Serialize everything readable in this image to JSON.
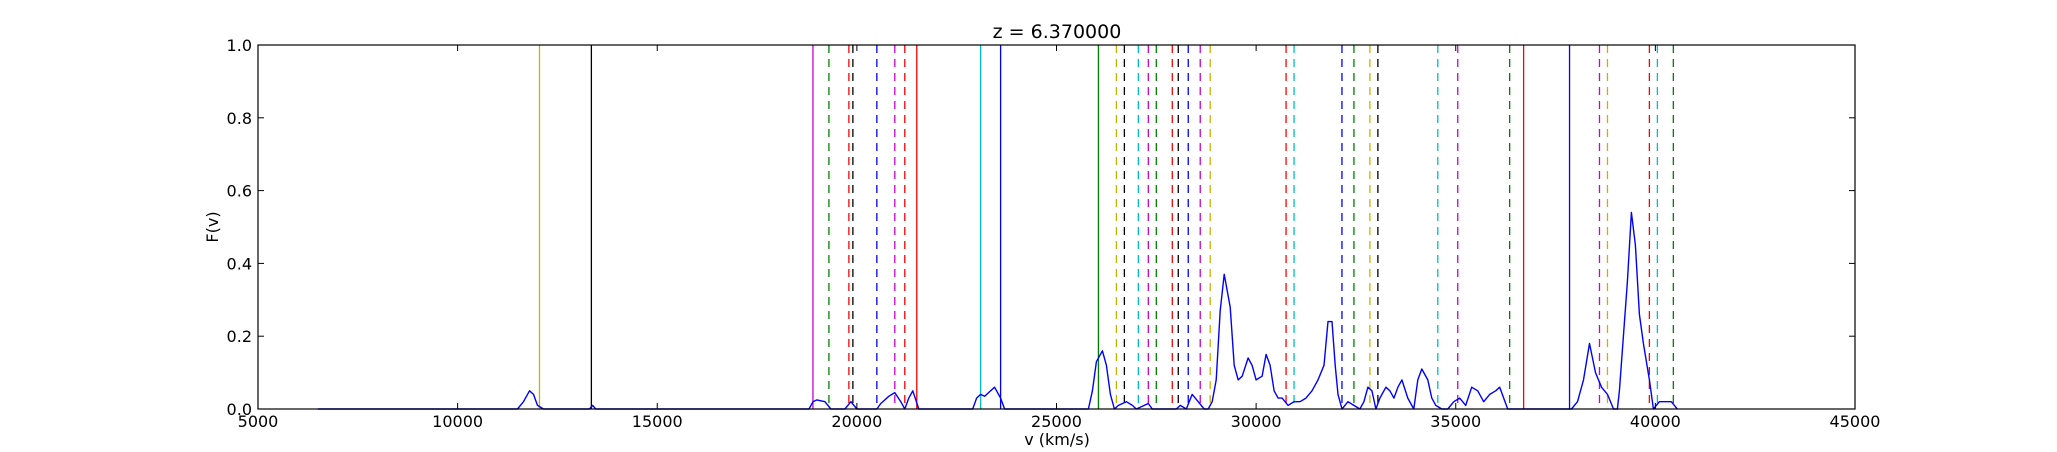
{
  "chart_data": {
    "type": "line",
    "title": "z = 6.370000",
    "xlabel": "v (km/s)",
    "ylabel": "F(v)",
    "xlim": [
      5000,
      45000
    ],
    "ylim": [
      0.0,
      1.0
    ],
    "grid": false,
    "x_ticks": [
      5000,
      10000,
      15000,
      20000,
      25000,
      30000,
      35000,
      40000,
      45000
    ],
    "x_tick_labels": [
      "5000",
      "10000",
      "15000",
      "20000",
      "25000",
      "30000",
      "35000",
      "40000",
      "45000"
    ],
    "y_ticks": [
      0.0,
      0.2,
      0.4,
      0.6,
      0.8,
      1.0
    ],
    "y_tick_labels": [
      "0.0",
      "0.2",
      "0.4",
      "0.6",
      "0.8",
      "1.0"
    ],
    "series": [
      {
        "color": "#0000ff",
        "x": [
          6500,
          11500,
          11650,
          11800,
          11900,
          12000,
          12150,
          12300,
          13300,
          13380,
          13460,
          18800,
          18900,
          19000,
          19200,
          19350,
          19700,
          19850,
          20000,
          20200,
          20500,
          20600,
          20800,
          20950,
          21100,
          21200,
          21300,
          21400,
          21550,
          22900,
          23000,
          23100,
          23200,
          23300,
          23450,
          23600,
          23700,
          25800,
          25900,
          26000,
          26150,
          26250,
          26350,
          26450,
          26550,
          26750,
          26900,
          27000,
          27300,
          27400,
          27500,
          28000,
          28100,
          28250,
          28400,
          28550,
          28700,
          28800,
          28900,
          29000,
          29100,
          29200,
          29350,
          29450,
          29550,
          29650,
          29800,
          29900,
          30000,
          30150,
          30250,
          30350,
          30450,
          30550,
          30650,
          30800,
          30950,
          31100,
          31250,
          31400,
          31550,
          31700,
          31800,
          31900,
          31980,
          32050,
          32150,
          32300,
          32450,
          32600,
          32700,
          32800,
          32900,
          33000,
          33100,
          33250,
          33350,
          33450,
          33550,
          33650,
          33800,
          33950,
          34050,
          34150,
          34300,
          34400,
          34500,
          34650,
          34800,
          34950,
          35100,
          35250,
          35400,
          35550,
          35700,
          35850,
          36000,
          36100,
          36200,
          36300,
          36400,
          36550,
          37600,
          37750,
          37900,
          38050,
          38200,
          38350,
          38500,
          38650,
          38800,
          38950,
          39050,
          39100,
          39200,
          39300,
          39400,
          39500,
          39600,
          39700,
          39850,
          39950,
          40100,
          40250,
          40400,
          40550
        ],
        "y": [
          0.0,
          0.0,
          0.02,
          0.05,
          0.04,
          0.01,
          0.0,
          0.0,
          0.0,
          0.01,
          0.0,
          0.0,
          0.02,
          0.025,
          0.02,
          0.0,
          0.0,
          0.02,
          0.0,
          0.0,
          0.0,
          0.015,
          0.035,
          0.045,
          0.02,
          0.0,
          0.03,
          0.05,
          0.0,
          0.0,
          0.03,
          0.04,
          0.035,
          0.045,
          0.06,
          0.03,
          0.0,
          0.0,
          0.05,
          0.13,
          0.16,
          0.12,
          0.04,
          0.0,
          0.01,
          0.02,
          0.01,
          0.0,
          0.015,
          0.0,
          0.0,
          0.0,
          0.01,
          0.0,
          0.04,
          0.02,
          0.0,
          0.0,
          0.02,
          0.08,
          0.27,
          0.37,
          0.28,
          0.12,
          0.08,
          0.09,
          0.14,
          0.12,
          0.08,
          0.09,
          0.15,
          0.12,
          0.05,
          0.03,
          0.03,
          0.01,
          0.02,
          0.02,
          0.03,
          0.05,
          0.08,
          0.12,
          0.24,
          0.24,
          0.12,
          0.04,
          0.0,
          0.02,
          0.01,
          0.0,
          0.02,
          0.06,
          0.05,
          0.0,
          0.03,
          0.06,
          0.05,
          0.03,
          0.06,
          0.08,
          0.03,
          0.0,
          0.08,
          0.11,
          0.08,
          0.03,
          0.01,
          0.0,
          0.0,
          0.02,
          0.03,
          0.01,
          0.06,
          0.05,
          0.02,
          0.04,
          0.05,
          0.06,
          0.03,
          0.0,
          0.0,
          0.0,
          0.0,
          0.0,
          0.0,
          0.02,
          0.08,
          0.18,
          0.1,
          0.06,
          0.04,
          0.0,
          0.0,
          0.05,
          0.2,
          0.35,
          0.54,
          0.45,
          0.26,
          0.18,
          0.08,
          0.0,
          0.02,
          0.02,
          0.02,
          0.0
        ]
      }
    ],
    "solid_lines": [
      {
        "x": 12050,
        "color": "#c8b400"
      },
      {
        "x": 13350,
        "color": "#000000"
      },
      {
        "x": 18900,
        "color": "#cc00cc"
      },
      {
        "x": 21500,
        "color": "#ff0000"
      },
      {
        "x": 23100,
        "color": "#00c0c0"
      },
      {
        "x": 23600,
        "color": "#0000ff"
      },
      {
        "x": 26050,
        "color": "#008000"
      },
      {
        "x": 36700,
        "color": "#ff0000"
      },
      {
        "x": 37850,
        "color": "#0000ff"
      }
    ],
    "dashed_lines": [
      {
        "x": 19300,
        "color": "#008000"
      },
      {
        "x": 19800,
        "color": "#ff0000"
      },
      {
        "x": 19900,
        "color": "#000000"
      },
      {
        "x": 20500,
        "color": "#0000ff"
      },
      {
        "x": 20950,
        "color": "#cc00cc"
      },
      {
        "x": 21200,
        "color": "#ff0000"
      },
      {
        "x": 26500,
        "color": "#c8b400"
      },
      {
        "x": 26700,
        "color": "#000000"
      },
      {
        "x": 27050,
        "color": "#00c0c0"
      },
      {
        "x": 27300,
        "color": "#cc00cc"
      },
      {
        "x": 27500,
        "color": "#008000"
      },
      {
        "x": 27900,
        "color": "#ff0000"
      },
      {
        "x": 28050,
        "color": "#000000"
      },
      {
        "x": 28300,
        "color": "#0000ff"
      },
      {
        "x": 28600,
        "color": "#cc00cc"
      },
      {
        "x": 28850,
        "color": "#c8b400"
      },
      {
        "x": 30750,
        "color": "#ff0000"
      },
      {
        "x": 30950,
        "color": "#00c0c0"
      },
      {
        "x": 32150,
        "color": "#0000ff"
      },
      {
        "x": 32450,
        "color": "#008000"
      },
      {
        "x": 32850,
        "color": "#c8b400"
      },
      {
        "x": 33050,
        "color": "#000000"
      },
      {
        "x": 34550,
        "color": "#00c0c0"
      },
      {
        "x": 35050,
        "color": "#cc00cc"
      },
      {
        "x": 36350,
        "color": "#008000"
      },
      {
        "x": 38600,
        "color": "#cc00cc"
      },
      {
        "x": 38800,
        "color": "#c8b400"
      },
      {
        "x": 39850,
        "color": "#ff0000"
      },
      {
        "x": 40050,
        "color": "#00c0c0"
      },
      {
        "x": 40450,
        "color": "#008000"
      }
    ]
  }
}
